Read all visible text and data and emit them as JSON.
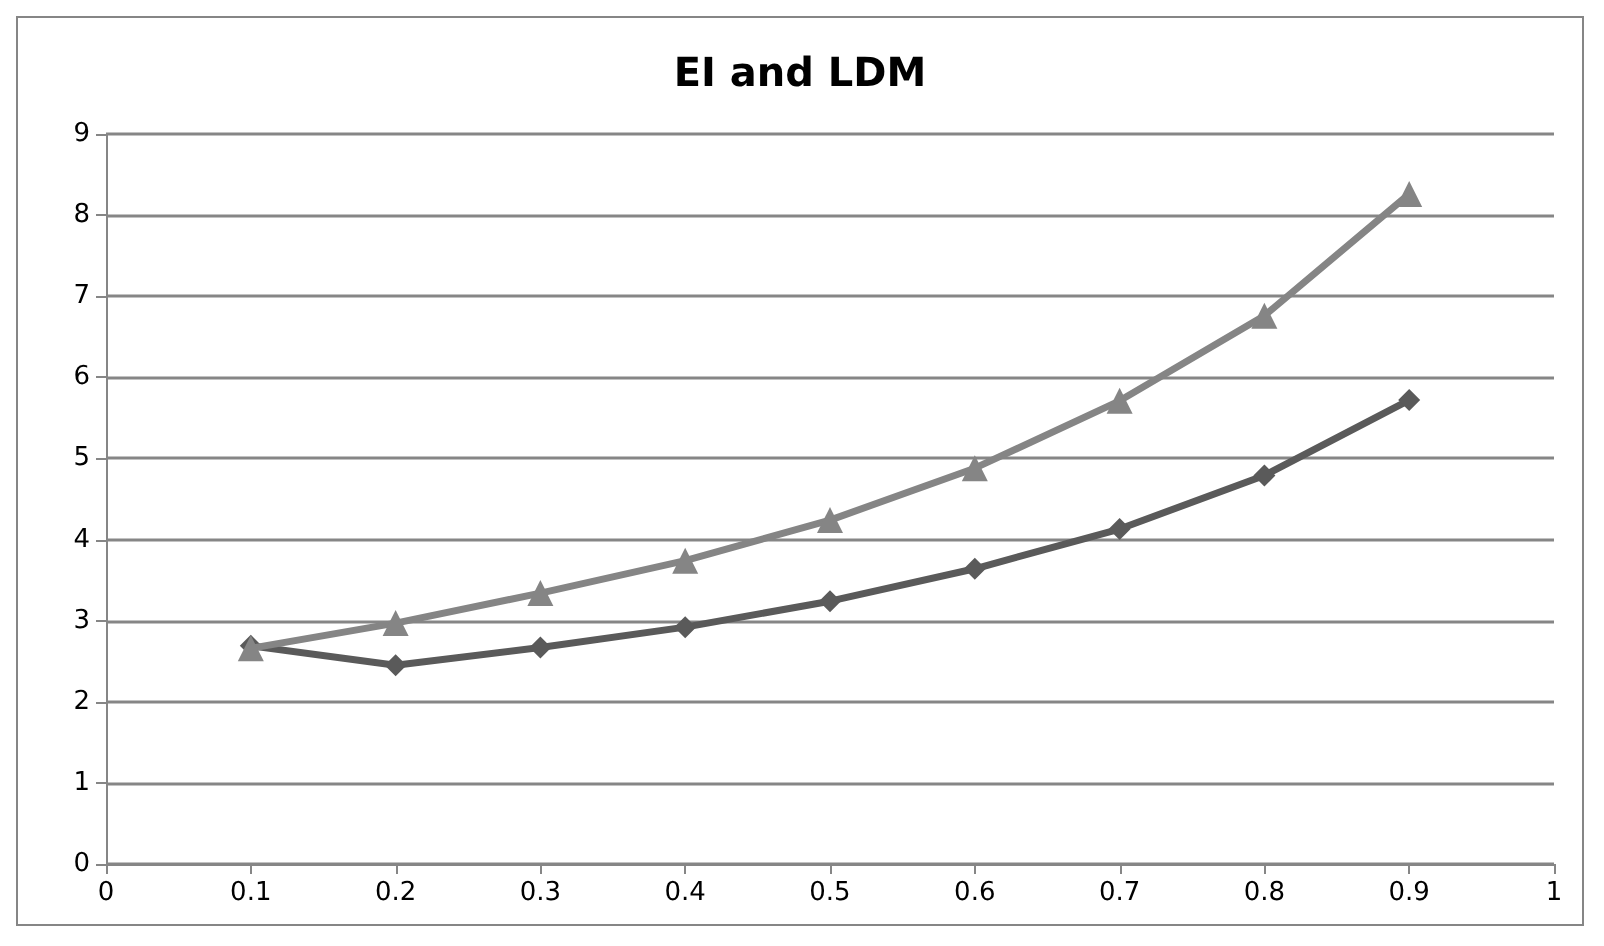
{
  "chart_data": {
    "type": "line",
    "title": "EI and LDM",
    "x": [
      0.1,
      0.2,
      0.3,
      0.4,
      0.5,
      0.6,
      0.7,
      0.8,
      0.9
    ],
    "series": [
      {
        "color": "#5a5a5a",
        "marker": "diamond",
        "values": [
          2.69,
          2.45,
          2.67,
          2.92,
          3.24,
          3.64,
          4.13,
          4.79,
          5.72
        ]
      },
      {
        "color": "#858585",
        "marker": "triangle",
        "values": [
          2.66,
          2.97,
          3.34,
          3.74,
          4.24,
          4.88,
          5.71,
          6.76,
          8.26
        ]
      }
    ],
    "xlim": [
      0,
      1
    ],
    "xticks": [
      0,
      0.1,
      0.2,
      0.3,
      0.4,
      0.5,
      0.6,
      0.7,
      0.8,
      0.9,
      1
    ],
    "ylim": [
      0,
      9
    ],
    "yticks": [
      0,
      1,
      2,
      3,
      4,
      5,
      6,
      7,
      8,
      9
    ],
    "grid": "y",
    "line_style": "solid"
  }
}
